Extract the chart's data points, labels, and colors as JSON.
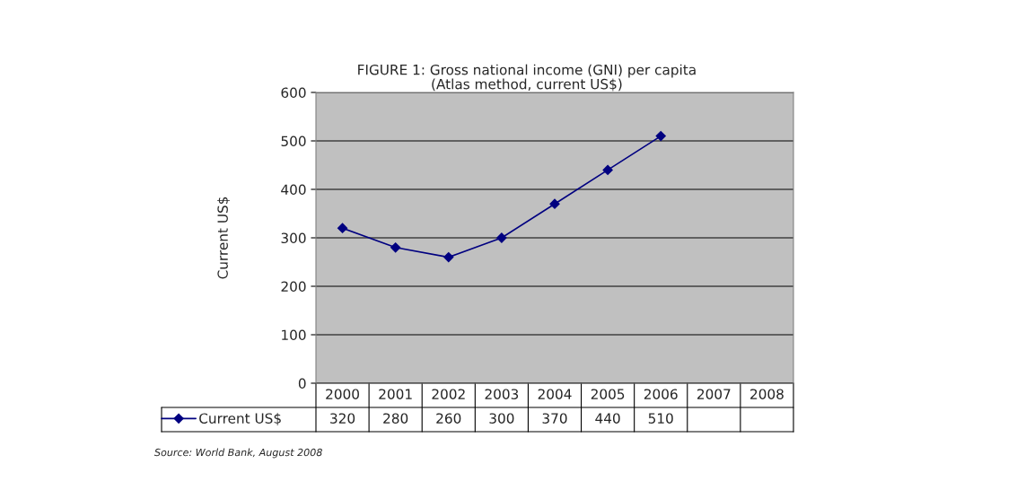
{
  "chart_data": {
    "type": "line",
    "title": "FIGURE 1: Gross national income (GNI) per capita\n(Atlas method, current US$)",
    "ylabel": "Current US$",
    "categories": [
      "2000",
      "2001",
      "2002",
      "2003",
      "2004",
      "2005",
      "2006",
      "2007",
      "2008"
    ],
    "series": [
      {
        "name": "Current US$",
        "color": "#000080",
        "values": [
          320,
          280,
          260,
          300,
          370,
          440,
          510,
          null,
          null
        ]
      }
    ],
    "ylim": [
      0,
      600
    ],
    "yticks": [
      0,
      100,
      200,
      300,
      400,
      500,
      600
    ],
    "grid": "y",
    "marker": "diamond",
    "line_style": "solid",
    "data_labels": true,
    "legend": "bottom",
    "annotations": [
      "Source: World Bank, August 2008"
    ]
  }
}
